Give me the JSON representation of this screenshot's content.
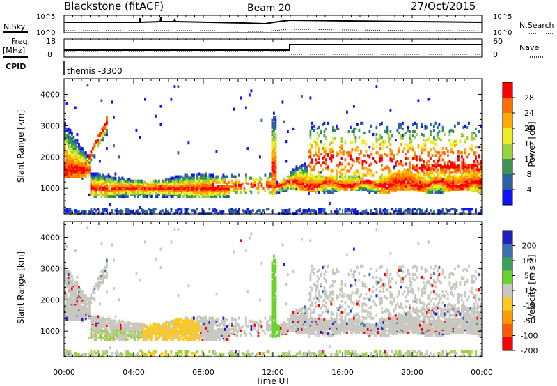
{
  "header": {
    "station": "Blackstone (fitACF)",
    "beam": "Beam 20",
    "date": "27/Oct/2015"
  },
  "summary": {
    "nsky_label": "N.Sky",
    "nsearch_label": "N.Search",
    "noise_ticks": [
      "10^5",
      "10^0"
    ],
    "freq_label": "Freq.",
    "freq_unit": "[MHz]",
    "freq_ticks": [
      "18",
      "8"
    ],
    "nave_label": "Nave",
    "nave_ticks": [
      "60",
      "0"
    ],
    "cpid_label": "CPID",
    "cpid_value": "themis -3300"
  },
  "chart_data": [
    {
      "type": "heatmap",
      "panel": "power",
      "ylabel": "Slant Range [km]",
      "yticks": [
        "4000",
        "3000",
        "2000",
        "1000"
      ],
      "ylim": [
        180,
        4500
      ],
      "colorbar_label": "Power [dB]",
      "colorbar_ticks": [
        "28",
        "24",
        "20",
        "16",
        "12",
        "8",
        "4"
      ],
      "colorbar_colors": [
        "#ff0000",
        "#ff6e00",
        "#ffaa00",
        "#eeee22",
        "#9ad23b",
        "#3c9650",
        "#2e5fa0",
        "#1010ff"
      ],
      "value_range": [
        0,
        32
      ]
    },
    {
      "type": "heatmap",
      "panel": "velocity",
      "ylabel": "Slant Range [km]",
      "yticks": [
        "4000",
        "3000",
        "2000",
        "1000"
      ],
      "ylim": [
        180,
        4500
      ],
      "colorbar_label": "Velocity [m s⁻¹]",
      "colorbar_ticks": [
        "200",
        "100",
        "50",
        "15",
        "-15",
        "-50",
        "-100",
        "-200"
      ],
      "colorbar_colors": [
        "#2020c0",
        "#3e70b0",
        "#3aa05a",
        "#6ad22e",
        "#c8c8c0",
        "#ffc820",
        "#ff9a00",
        "#ff5a00",
        "#ff0000"
      ],
      "xlabel": "Time UT",
      "xticks": [
        "00:00",
        "04:00",
        "08:00",
        "12:00",
        "16:00",
        "20:00",
        "00:00"
      ],
      "xlim_hours": [
        0,
        24
      ]
    }
  ]
}
